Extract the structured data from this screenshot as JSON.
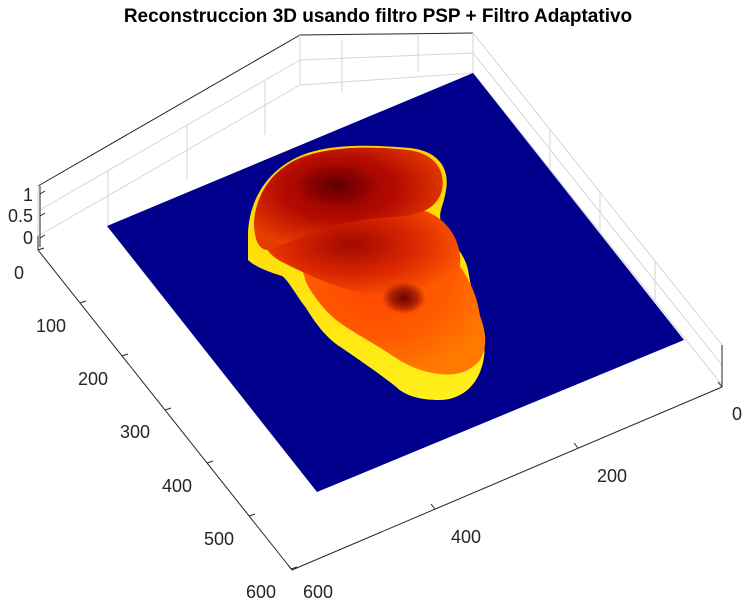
{
  "chart_data": {
    "type": "surface",
    "title": "Reconstruccion 3D usando filtro PSP + Filtro Adaptativo",
    "xlabel": "",
    "ylabel": "",
    "zlabel": "",
    "x_ticks": [
      "0",
      "200",
      "400",
      "600"
    ],
    "y_ticks": [
      "0",
      "100",
      "200",
      "300",
      "400",
      "500",
      "600"
    ],
    "z_ticks": [
      "0",
      "0.5",
      "1"
    ],
    "xlim": [
      0,
      600
    ],
    "ylim": [
      0,
      600
    ],
    "zlim": [
      0,
      1
    ],
    "grid": true,
    "colormap": "hot",
    "background_color": "#000080",
    "surface_description": "Reconstructed 3D height map: a raised blob on a flat dark-blue plane, colored by height from yellow (base walls) through red to dark red (highest regions)."
  }
}
